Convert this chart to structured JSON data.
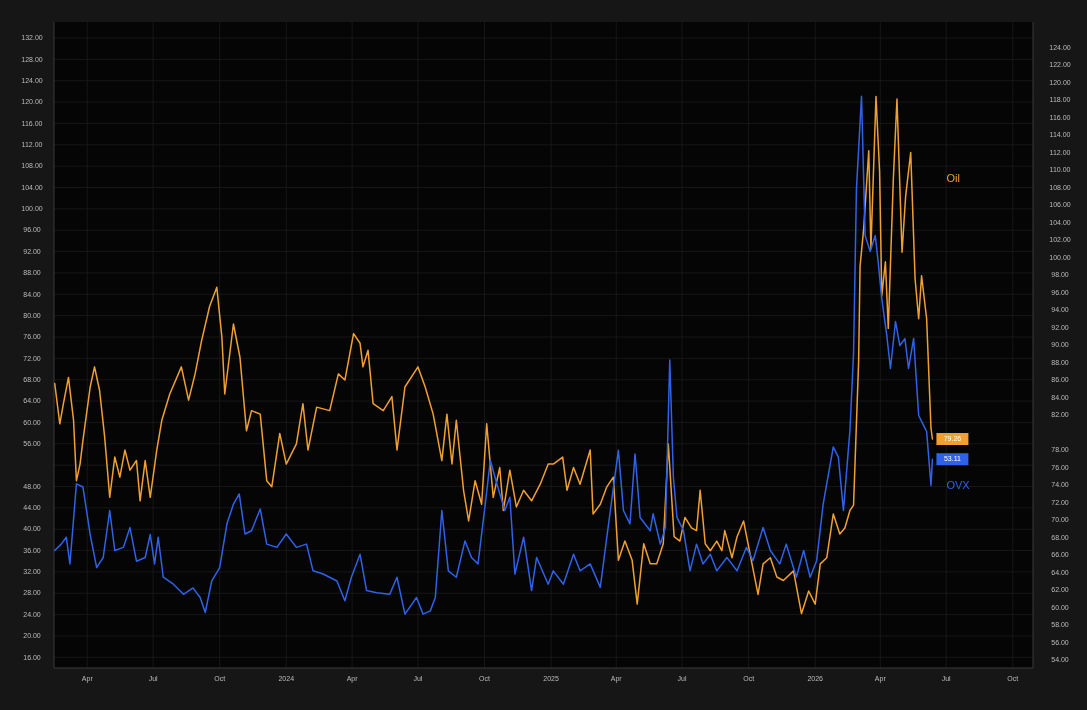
{
  "chart_data": {
    "type": "line",
    "xlim": [
      "2023-02-14",
      "2026-10-29"
    ],
    "ylim": [
      14,
      135
    ],
    "y2lim": [
      53.1,
      126.9
    ],
    "yticks": [
      {
        "value": 16,
        "label": "16.00"
      },
      {
        "value": 20,
        "label": "20.00"
      },
      {
        "value": 24,
        "label": "24.00"
      },
      {
        "value": 28,
        "label": "28.00"
      },
      {
        "value": 32,
        "label": "32.00"
      },
      {
        "value": 36,
        "label": "36.00"
      },
      {
        "value": 40,
        "label": "40.00"
      },
      {
        "value": 44,
        "label": "44.00"
      },
      {
        "value": 48,
        "label": "48.00"
      },
      {
        "value": 52,
        "label": null
      },
      {
        "value": 56,
        "label": "56.00"
      },
      {
        "value": 60,
        "label": "60.00"
      },
      {
        "value": 64,
        "label": "64.00"
      },
      {
        "value": 68,
        "label": "68.00"
      },
      {
        "value": 72,
        "label": "72.00"
      },
      {
        "value": 76,
        "label": "76.00"
      },
      {
        "value": 80,
        "label": "80.00"
      },
      {
        "value": 84,
        "label": "84.00"
      },
      {
        "value": 88,
        "label": "88.00"
      },
      {
        "value": 92,
        "label": "92.00"
      },
      {
        "value": 96,
        "label": "96.00"
      },
      {
        "value": 100,
        "label": "100.00"
      },
      {
        "value": 104,
        "label": "104.00"
      },
      {
        "value": 108,
        "label": "108.00"
      },
      {
        "value": 112,
        "label": "112.00"
      },
      {
        "value": 116,
        "label": "116.00"
      },
      {
        "value": 120,
        "label": "120.00"
      },
      {
        "value": 124,
        "label": "124.00"
      },
      {
        "value": 128,
        "label": "128.00"
      },
      {
        "value": 132,
        "label": "132.00"
      }
    ],
    "y2ticks": [
      {
        "value": 54,
        "label": "54.00"
      },
      {
        "value": 56,
        "label": "56.00"
      },
      {
        "value": 58,
        "label": "58.00"
      },
      {
        "value": 60,
        "label": "60.00"
      },
      {
        "value": 62,
        "label": "62.00"
      },
      {
        "value": 64,
        "label": "64.00"
      },
      {
        "value": 66,
        "label": "66.00"
      },
      {
        "value": 68,
        "label": "68.00"
      },
      {
        "value": 70,
        "label": "70.00"
      },
      {
        "value": 72,
        "label": "72.00"
      },
      {
        "value": 74,
        "label": "74.00"
      },
      {
        "value": 76,
        "label": "76.00"
      },
      {
        "value": 78,
        "label": "78.00"
      },
      {
        "value": 82,
        "label": "82.00"
      },
      {
        "value": 84,
        "label": "84.00"
      },
      {
        "value": 86,
        "label": "86.00"
      },
      {
        "value": 88,
        "label": "88.00"
      },
      {
        "value": 90,
        "label": "90.00"
      },
      {
        "value": 92,
        "label": "92.00"
      },
      {
        "value": 94,
        "label": "94.00"
      },
      {
        "value": 96,
        "label": "96.00"
      },
      {
        "value": 98,
        "label": "98.00"
      },
      {
        "value": 100,
        "label": "100.00"
      },
      {
        "value": 102,
        "label": "102.00"
      },
      {
        "value": 104,
        "label": "104.00"
      },
      {
        "value": 106,
        "label": "106.00"
      },
      {
        "value": 108,
        "label": "108.00"
      },
      {
        "value": 110,
        "label": "110.00"
      },
      {
        "value": 112,
        "label": "112.00"
      },
      {
        "value": 114,
        "label": "114.00"
      },
      {
        "value": 116,
        "label": "116.00"
      },
      {
        "value": 118,
        "label": "118.00"
      },
      {
        "value": 120,
        "label": "120.00"
      },
      {
        "value": 122,
        "label": "122.00"
      },
      {
        "value": 124,
        "label": "124.00"
      }
    ],
    "xticks": [
      {
        "value": "2023-04-01",
        "label": "Apr"
      },
      {
        "value": "2023-07-01",
        "label": "Jul"
      },
      {
        "value": "2023-10-01",
        "label": "Oct"
      },
      {
        "value": "2024-01-01",
        "label": "2024"
      },
      {
        "value": "2024-04-01",
        "label": "Apr"
      },
      {
        "value": "2024-07-01",
        "label": "Jul"
      },
      {
        "value": "2024-10-01",
        "label": "Oct"
      },
      {
        "value": "2025-01-01",
        "label": "2025"
      },
      {
        "value": "2025-04-01",
        "label": "Apr"
      },
      {
        "value": "2025-07-01",
        "label": "Jul"
      },
      {
        "value": "2025-10-01",
        "label": "Oct"
      },
      {
        "value": "2026-01-01",
        "label": "2026"
      },
      {
        "value": "2026-04-01",
        "label": "Apr"
      },
      {
        "value": "2026-07-01",
        "label": "Jul"
      },
      {
        "value": "2026-10-01",
        "label": "Oct"
      }
    ],
    "grid": true,
    "legend": false,
    "series": [
      {
        "name": "Oil",
        "color": "#f0a030",
        "axis": "y2",
        "x": [
          "2023-02-15",
          "2023-02-22",
          "2023-02-27",
          "2023-03-06",
          "2023-03-13",
          "2023-03-17",
          "2023-03-22",
          "2023-03-26",
          "2023-04-05",
          "2023-04-11",
          "2023-04-18",
          "2023-04-25",
          "2023-05-02",
          "2023-05-09",
          "2023-05-16",
          "2023-05-23",
          "2023-05-30",
          "2023-06-08",
          "2023-06-13",
          "2023-06-20",
          "2023-06-27",
          "2023-07-06",
          "2023-07-13",
          "2023-07-24",
          "2023-08-09",
          "2023-08-19",
          "2023-08-28",
          "2023-09-06",
          "2023-09-17",
          "2023-09-27",
          "2023-10-04",
          "2023-10-08",
          "2023-10-20",
          "2023-10-29",
          "2023-11-07",
          "2023-11-14",
          "2023-11-26",
          "2023-12-05",
          "2023-12-12",
          "2023-12-23",
          "2024-01-01",
          "2024-01-15",
          "2024-01-24",
          "2024-01-31",
          "2024-02-12",
          "2024-03-01",
          "2024-03-13",
          "2024-03-22",
          "2024-04-03",
          "2024-04-12",
          "2024-04-16",
          "2024-04-23",
          "2024-04-30",
          "2024-05-14",
          "2024-05-26",
          "2024-06-02",
          "2024-06-13",
          "2024-07-01",
          "2024-07-11",
          "2024-07-22",
          "2024-08-03",
          "2024-08-10",
          "2024-08-17",
          "2024-08-23",
          "2024-09-02",
          "2024-09-09",
          "2024-09-18",
          "2024-09-27",
          "2024-10-04",
          "2024-10-13",
          "2024-10-22",
          "2024-10-27",
          "2024-11-05",
          "2024-11-14",
          "2024-11-24",
          "2024-12-05",
          "2024-12-17",
          "2024-12-28",
          "2025-01-04",
          "2025-01-17",
          "2025-01-23",
          "2025-02-01",
          "2025-02-10",
          "2025-02-24",
          "2025-02-28",
          "2025-03-10",
          "2025-03-19",
          "2025-03-28",
          "2025-04-04",
          "2025-04-13",
          "2025-04-23",
          "2025-04-30",
          "2025-05-09",
          "2025-05-18",
          "2025-05-27",
          "2025-06-05",
          "2025-06-12",
          "2025-06-20",
          "2025-06-28",
          "2025-07-05",
          "2025-07-14",
          "2025-07-21",
          "2025-07-26",
          "2025-08-02",
          "2025-08-09",
          "2025-08-18",
          "2025-08-25",
          "2025-08-29",
          "2025-09-08",
          "2025-09-15",
          "2025-09-24",
          "2025-10-03",
          "2025-10-14",
          "2025-10-21",
          "2025-10-31",
          "2025-11-09",
          "2025-11-18",
          "2025-12-02",
          "2025-12-13",
          "2025-12-23",
          "2026-01-01",
          "2026-01-08",
          "2026-01-17",
          "2026-01-26",
          "2026-02-04",
          "2026-02-11",
          "2026-02-18",
          "2026-02-23",
          "2026-03-02",
          "2026-03-04",
          "2026-03-09",
          "2026-03-16",
          "2026-03-19",
          "2026-03-26",
          "2026-03-31",
          "2026-04-03",
          "2026-04-08",
          "2026-04-12",
          "2026-04-19",
          "2026-04-24",
          "2026-05-01",
          "2026-05-06",
          "2026-05-13",
          "2026-05-19",
          "2026-05-24",
          "2026-05-28",
          "2026-06-04",
          "2026-06-10",
          "2026-06-12"
        ],
        "values": [
          85.6,
          81.0,
          83.3,
          86.3,
          81.4,
          74.5,
          76.4,
          79.1,
          85.2,
          87.5,
          84.8,
          79.5,
          72.6,
          77.2,
          74.9,
          78.0,
          75.7,
          76.8,
          72.2,
          76.8,
          72.6,
          78.0,
          81.4,
          84.4,
          87.5,
          83.7,
          86.7,
          90.5,
          94.4,
          96.6,
          90.9,
          84.4,
          92.4,
          88.6,
          80.2,
          82.5,
          82.1,
          74.5,
          73.8,
          79.9,
          76.4,
          78.7,
          83.3,
          78.0,
          82.9,
          82.5,
          86.7,
          86.0,
          91.3,
          90.2,
          87.5,
          89.4,
          83.3,
          82.5,
          84.1,
          78.0,
          85.2,
          87.5,
          85.2,
          82.1,
          76.8,
          82.1,
          76.4,
          81.4,
          73.4,
          69.9,
          74.5,
          71.8,
          81.0,
          72.6,
          76.0,
          71.1,
          75.7,
          71.5,
          73.4,
          72.2,
          74.1,
          76.4,
          76.4,
          77.2,
          73.4,
          76.0,
          74.1,
          78.0,
          70.7,
          71.8,
          73.8,
          74.9,
          65.4,
          67.6,
          65.4,
          60.4,
          67.3,
          65.0,
          65.0,
          67.3,
          78.7,
          68.1,
          67.6,
          70.3,
          69.1,
          68.8,
          73.4,
          67.3,
          66.5,
          67.6,
          66.5,
          68.8,
          65.7,
          68.1,
          69.9,
          66.1,
          61.5,
          65.0,
          65.7,
          63.5,
          63.1,
          64.2,
          59.3,
          61.9,
          60.4,
          65.0,
          65.7,
          70.7,
          68.4,
          69.1,
          71.1,
          71.7,
          88.1,
          99.0,
          103.3,
          112.2,
          101.0,
          118.4,
          109.8,
          95.6,
          99.5,
          91.9,
          109.0,
          118.1,
          100.6,
          107.0,
          112.0,
          97.6,
          93.0,
          97.9,
          93.0,
          80.5,
          79.26
        ],
        "value_labels": [
          null,
          null,
          null,
          null,
          null,
          null,
          null,
          null,
          null,
          null,
          null,
          null,
          null,
          null,
          null,
          null,
          null,
          null,
          null,
          null,
          null,
          null,
          null,
          null,
          null,
          null,
          null,
          null,
          null,
          null,
          null,
          null,
          null,
          null,
          null,
          null,
          null,
          null,
          null,
          null,
          null,
          null,
          null,
          null,
          null,
          null,
          null,
          null,
          null,
          null,
          null,
          null,
          null,
          null,
          null,
          null,
          null,
          null,
          null,
          null,
          null,
          null,
          null,
          null,
          null,
          null,
          null,
          null,
          null,
          null,
          null,
          null,
          null,
          null,
          null,
          null,
          null,
          null,
          null,
          null,
          null,
          null,
          null,
          null,
          null,
          null,
          null,
          null,
          null,
          null,
          null,
          null,
          null,
          null,
          null,
          null,
          null,
          null,
          null,
          null,
          null,
          null,
          null,
          null,
          null,
          null,
          null,
          null,
          null,
          null,
          null,
          null,
          null,
          null,
          null,
          null,
          null,
          null,
          null,
          null,
          null,
          null,
          null,
          null,
          null,
          null,
          null,
          null,
          null,
          null,
          null,
          null,
          null,
          null,
          null,
          null,
          null,
          null,
          null,
          null,
          null,
          null,
          null,
          null,
          null,
          null,
          null,
          null,
          "79.26"
        ]
      },
      {
        "name": "OVX",
        "color": "#2f62e8",
        "axis": "y",
        "x": [
          "2023-02-15",
          "2023-02-24",
          "2023-03-03",
          "2023-03-08",
          "2023-03-17",
          "2023-03-26",
          "2023-04-05",
          "2023-04-14",
          "2023-04-23",
          "2023-05-02",
          "2023-05-09",
          "2023-05-21",
          "2023-05-30",
          "2023-06-08",
          "2023-06-20",
          "2023-06-27",
          "2023-07-03",
          "2023-07-08",
          "2023-07-15",
          "2023-07-29",
          "2023-08-12",
          "2023-08-25",
          "2023-09-04",
          "2023-09-11",
          "2023-09-20",
          "2023-10-01",
          "2023-10-11",
          "2023-10-20",
          "2023-10-28",
          "2023-11-05",
          "2023-11-14",
          "2023-11-26",
          "2023-12-05",
          "2023-12-19",
          "2024-01-01",
          "2024-01-15",
          "2024-01-29",
          "2024-02-07",
          "2024-02-21",
          "2024-03-11",
          "2024-03-22",
          "2024-03-31",
          "2024-04-12",
          "2024-04-21",
          "2024-05-05",
          "2024-05-23",
          "2024-06-02",
          "2024-06-13",
          "2024-06-29",
          "2024-07-08",
          "2024-07-18",
          "2024-07-25",
          "2024-08-03",
          "2024-08-12",
          "2024-08-23",
          "2024-09-04",
          "2024-09-13",
          "2024-09-22",
          "2024-10-02",
          "2024-10-09",
          "2024-10-18",
          "2024-10-29",
          "2024-11-05",
          "2024-11-12",
          "2024-11-24",
          "2024-12-05",
          "2024-12-12",
          "2024-12-28",
          "2025-01-04",
          "2025-01-18",
          "2025-02-01",
          "2025-02-10",
          "2025-02-24",
          "2025-03-10",
          "2025-03-19",
          "2025-04-04",
          "2025-04-11",
          "2025-04-20",
          "2025-04-27",
          "2025-05-04",
          "2025-05-18",
          "2025-05-22",
          "2025-06-01",
          "2025-06-08",
          "2025-06-14",
          "2025-06-19",
          "2025-06-24",
          "2025-07-03",
          "2025-07-12",
          "2025-07-21",
          "2025-07-30",
          "2025-08-09",
          "2025-08-18",
          "2025-09-01",
          "2025-09-15",
          "2025-09-28",
          "2025-10-07",
          "2025-10-21",
          "2025-10-31",
          "2025-11-13",
          "2025-11-22",
          "2025-12-06",
          "2025-12-16",
          "2025-12-25",
          "2026-01-03",
          "2026-01-12",
          "2026-01-26",
          "2026-02-02",
          "2026-02-09",
          "2026-02-18",
          "2026-02-23",
          "2026-02-27",
          "2026-03-06",
          "2026-03-11",
          "2026-03-18",
          "2026-03-25",
          "2026-03-29",
          "2026-04-03",
          "2026-04-10",
          "2026-04-15",
          "2026-04-22",
          "2026-04-28",
          "2026-05-05",
          "2026-05-10",
          "2026-05-17",
          "2026-05-24",
          "2026-05-31",
          "2026-06-04",
          "2026-06-10",
          "2026-06-12"
        ],
        "values": [
          36.0,
          37.2,
          38.5,
          33.5,
          48.5,
          47.9,
          39.0,
          32.8,
          34.7,
          43.5,
          36.0,
          36.6,
          40.3,
          34.0,
          34.7,
          39.0,
          33.5,
          38.5,
          31.0,
          29.7,
          27.8,
          29.0,
          27.2,
          24.4,
          30.3,
          32.8,
          41.0,
          44.7,
          46.6,
          39.1,
          39.7,
          43.8,
          37.2,
          36.6,
          39.1,
          36.6,
          37.2,
          32.2,
          31.6,
          30.3,
          26.6,
          31.0,
          35.3,
          28.5,
          28.1,
          27.8,
          31.0,
          24.1,
          27.2,
          24.1,
          24.7,
          27.2,
          43.5,
          32.2,
          31.0,
          37.8,
          34.7,
          33.5,
          44.7,
          52.9,
          48.5,
          43.5,
          46.0,
          31.6,
          38.5,
          28.5,
          34.7,
          29.7,
          32.2,
          29.7,
          35.3,
          32.2,
          33.5,
          29.1,
          38.5,
          54.8,
          43.5,
          41.0,
          54.1,
          42.2,
          39.7,
          42.9,
          37.2,
          40.3,
          71.7,
          49.7,
          42.2,
          39.7,
          32.2,
          37.2,
          33.5,
          35.3,
          32.2,
          34.7,
          32.2,
          36.6,
          34.1,
          40.3,
          36.0,
          33.5,
          37.2,
          31.0,
          36.0,
          31.0,
          34.1,
          44.7,
          55.4,
          53.5,
          43.5,
          58.5,
          72.9,
          103.7,
          121.1,
          95.0,
          92.0,
          95.0,
          90.1,
          83.2,
          76.2,
          70.1,
          78.9,
          74.4,
          75.7,
          70.1,
          75.7,
          61.3,
          59.4,
          58.3,
          48.2,
          53.11
        ],
        "value_labels": [
          null,
          null,
          null,
          null,
          null,
          null,
          null,
          null,
          null,
          null,
          null,
          null,
          null,
          null,
          null,
          null,
          null,
          null,
          null,
          null,
          null,
          null,
          null,
          null,
          null,
          null,
          null,
          null,
          null,
          null,
          null,
          null,
          null,
          null,
          null,
          null,
          null,
          null,
          null,
          null,
          null,
          null,
          null,
          null,
          null,
          null,
          null,
          null,
          null,
          null,
          null,
          null,
          null,
          null,
          null,
          null,
          null,
          null,
          null,
          null,
          null,
          null,
          null,
          null,
          null,
          null,
          null,
          null,
          null,
          null,
          null,
          null,
          null,
          null,
          null,
          null,
          null,
          null,
          null,
          null,
          null,
          null,
          null,
          null,
          null,
          null,
          null,
          null,
          null,
          null,
          null,
          null,
          null,
          null,
          null,
          null,
          null,
          null,
          null,
          null,
          null,
          null,
          null,
          null,
          null,
          null,
          null,
          null,
          null,
          null,
          null,
          null,
          null,
          null,
          null,
          null,
          null,
          null,
          null,
          null,
          null,
          null,
          null,
          null,
          null,
          null,
          null,
          null,
          null,
          "53.11"
        ]
      }
    ]
  }
}
